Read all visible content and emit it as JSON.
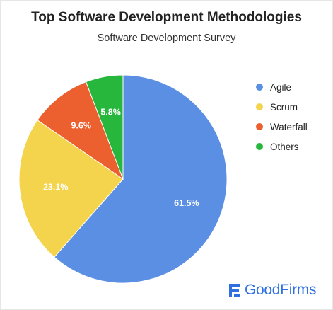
{
  "chart_data": {
    "type": "pie",
    "title": "Top Software Development Methodologies",
    "subtitle": "Software Development Survey",
    "slices": [
      {
        "label": "Agile",
        "value": 61.5,
        "value_label": "61.5%",
        "color": "#5b8fe3"
      },
      {
        "label": "Scrum",
        "value": 23.1,
        "value_label": "23.1%",
        "color": "#f4d44d"
      },
      {
        "label": "Waterfall",
        "value": 9.6,
        "value_label": "9.6%",
        "color": "#ec5f2e"
      },
      {
        "label": "Others",
        "value": 5.8,
        "value_label": "5.8%",
        "color": "#27b73c"
      }
    ],
    "start_angle": "12 o'clock",
    "direction": "clockwise",
    "legend_position": "right"
  },
  "brand": {
    "name": "GoodFirms",
    "color": "#2f6fe0",
    "icon": "goodfirms-logo-icon"
  }
}
